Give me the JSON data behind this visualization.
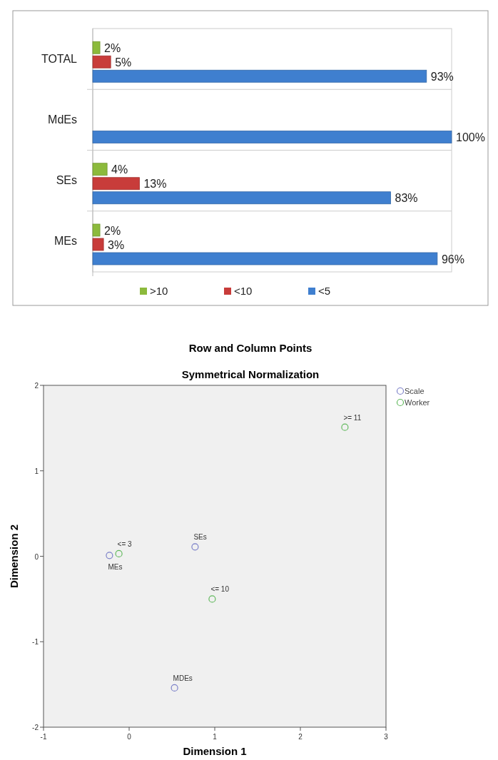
{
  "chart_data": [
    {
      "type": "bar",
      "orientation": "horizontal",
      "categories": [
        "TOTAL",
        "MdEs",
        "SEs",
        "MEs"
      ],
      "xlim": [
        0,
        100
      ],
      "tick_labels": "y",
      "legend": "bottom",
      "series": [
        {
          "name": ">10",
          "color": "#8cba3c",
          "values": [
            2,
            null,
            4,
            2
          ],
          "value_labels": [
            "2%",
            null,
            "4%",
            "2%"
          ]
        },
        {
          "name": "<10",
          "color": "#c83c3a",
          "values": [
            5,
            null,
            13,
            3
          ],
          "value_labels": [
            "5%",
            null,
            "13%",
            "3%"
          ]
        },
        {
          "name": "<5",
          "color": "#3f7fcf",
          "values": [
            93,
            100,
            83,
            96
          ],
          "value_labels": [
            "93%",
            "100%",
            "83%",
            "96%"
          ]
        }
      ]
    },
    {
      "type": "scatter",
      "title": "Row and Column Points",
      "subtitle": "Symmetrical Normalization",
      "xlabel": "Dimension 1",
      "ylabel": "Dimension 2",
      "xlim": [
        -1,
        3
      ],
      "ylim": [
        -2,
        2
      ],
      "xticks": [
        -1,
        0,
        1,
        2,
        3
      ],
      "yticks": [
        -2,
        -1,
        0,
        1,
        2
      ],
      "marker": "circle",
      "legend": "top right",
      "series": [
        {
          "name": "Scale",
          "color": "#7b80c8",
          "x": [
            -0.23,
            0.77,
            0.53
          ],
          "values": [
            0.01,
            0.11,
            -1.54
          ]
        },
        {
          "name": "Worker",
          "color": "#62b95e",
          "x": [
            -0.12,
            0.97,
            2.52
          ],
          "values": [
            0.03,
            -0.5,
            1.51
          ]
        }
      ],
      "annotations": [
        {
          "text": "<= 3",
          "x": -0.12,
          "y": 0.03
        },
        {
          "text": "MEs",
          "x": -0.23,
          "y": 0.01
        },
        {
          "text": "SEs",
          "x": 0.77,
          "y": 0.11
        },
        {
          "text": "<= 10",
          "x": 0.97,
          "y": -0.5
        },
        {
          "text": "MDEs",
          "x": 0.53,
          "y": -1.54
        },
        {
          "text": ">= 11",
          "x": 2.52,
          "y": 1.51
        }
      ]
    }
  ]
}
